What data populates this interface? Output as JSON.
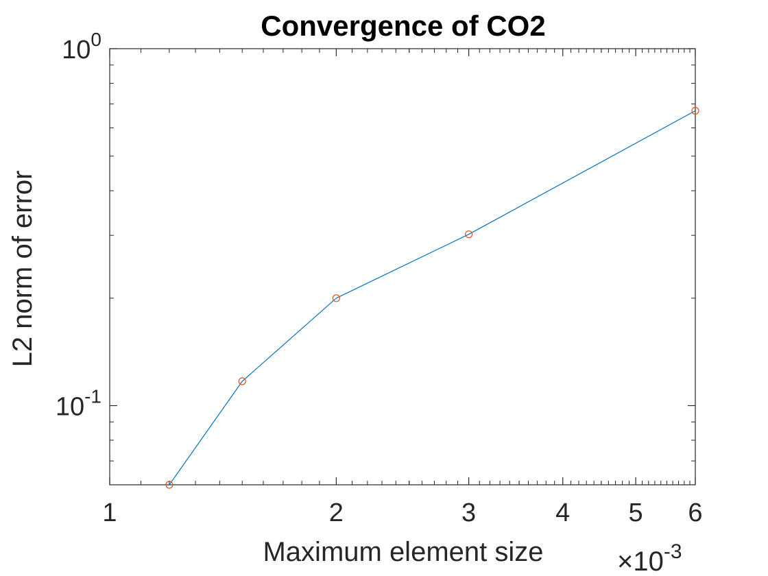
{
  "chart_data": {
    "type": "line",
    "title": "Convergence of CO2",
    "xlabel": "Maximum element size",
    "ylabel": "L2 norm of error",
    "x_scale": "log",
    "y_scale": "log",
    "x_multiplier": "×10",
    "x_multiplier_exponent": "-3",
    "xlim": [
      0.001,
      0.006
    ],
    "ylim": [
      0.06,
      1
    ],
    "x_ticks": [
      {
        "value": 0.001,
        "label": "1"
      },
      {
        "value": 0.002,
        "label": "2"
      },
      {
        "value": 0.003,
        "label": "3"
      },
      {
        "value": 0.004,
        "label": "4"
      },
      {
        "value": 0.005,
        "label": "5"
      },
      {
        "value": 0.006,
        "label": "6"
      }
    ],
    "y_ticks": [
      {
        "value": 1,
        "base": "10",
        "exponent": "0"
      },
      {
        "value": 0.1,
        "base": "10",
        "exponent": "-1"
      }
    ],
    "grid": false,
    "series": [
      {
        "x": [
          0.0012,
          0.0015,
          0.002,
          0.003,
          0.006
        ],
        "y": [
          0.06,
          0.117,
          0.2,
          0.302,
          0.67
        ],
        "line_color": "#0072BD",
        "marker": "circle",
        "marker_color": "#D95319"
      }
    ]
  }
}
